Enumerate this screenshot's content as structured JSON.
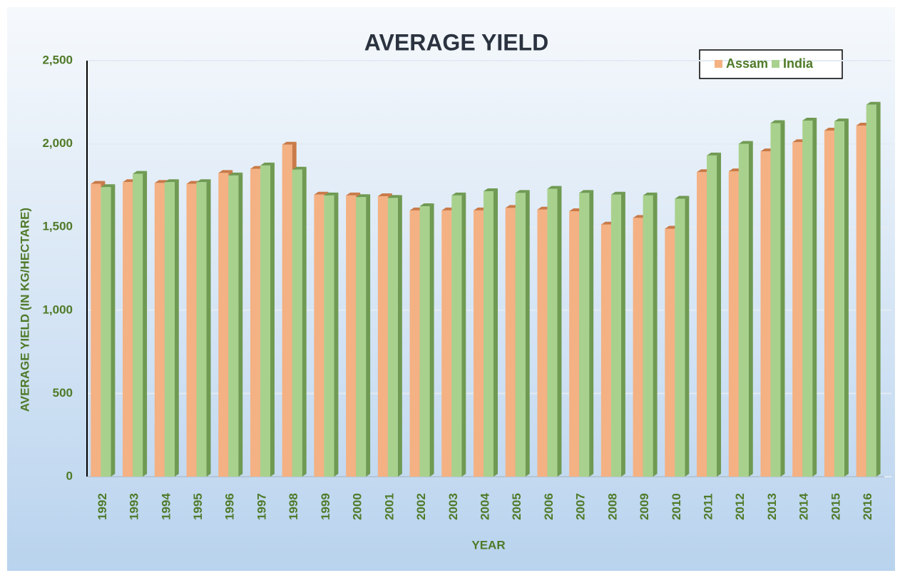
{
  "chart_data": {
    "type": "bar",
    "title": "AVERAGE YIELD",
    "x_label": "YEAR",
    "y_label": "AVERAGE YIELD (IN KG/HECTARE)",
    "categories": [
      "1992",
      "1993",
      "1994",
      "1995",
      "1996",
      "1997",
      "1998",
      "1999",
      "2000",
      "2001",
      "2002",
      "2003",
      "2004",
      "2005",
      "2006",
      "2007",
      "2008",
      "2009",
      "2010",
      "2011",
      "2012",
      "2013",
      "2014",
      "2015",
      "2016"
    ],
    "series": [
      {
        "name": "Assam",
        "color": "#f4b183",
        "values": [
          1760,
          1770,
          1765,
          1760,
          1825,
          1850,
          1995,
          1695,
          1690,
          1685,
          1600,
          1600,
          1600,
          1615,
          1605,
          1595,
          1515,
          1555,
          1490,
          1830,
          1835,
          1955,
          2010,
          2080,
          2110
        ]
      },
      {
        "name": "India",
        "color": "#a9d18e",
        "values": [
          1740,
          1820,
          1770,
          1770,
          1810,
          1870,
          1845,
          1690,
          1680,
          1675,
          1625,
          1690,
          1715,
          1705,
          1730,
          1705,
          1695,
          1690,
          1670,
          1930,
          2000,
          2125,
          2140,
          2135,
          2235
        ]
      }
    ],
    "ylim": [
      0,
      2500
    ],
    "yticks": [
      0,
      500,
      {
        "value": 1000,
        "label": "1,000"
      },
      {
        "value": 1500,
        "label": "1,500"
      },
      {
        "value": 2000,
        "label": "2,000"
      },
      {
        "value": 2500,
        "label": "2,500"
      }
    ],
    "grid": true,
    "legend": "top-right"
  }
}
